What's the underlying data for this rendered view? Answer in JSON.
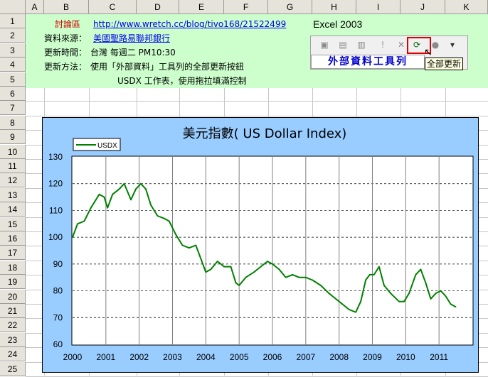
{
  "columns": [
    "A",
    "B",
    "C",
    "D",
    "E",
    "F",
    "G",
    "H",
    "I",
    "J",
    "K"
  ],
  "rows": [
    "1",
    "2",
    "3",
    "4",
    "5",
    "6",
    "7",
    "8",
    "9",
    "10",
    "11",
    "12",
    "13",
    "14",
    "15",
    "16",
    "17",
    "18",
    "19",
    "20",
    "21",
    "22",
    "23",
    "24",
    "25"
  ],
  "sheet": {
    "discuss_label": "討論區",
    "discuss_url": "http://www.wretch.cc/blog/tivo168/21522499",
    "excel_version": "Excel 2003",
    "source_label": "資料來源：",
    "source_value": "美國聖路易聯邦銀行",
    "update_time_label": "更新時間：",
    "update_time_value": "台灣 每週二 PM10:30",
    "update_method_label": "更新方法：",
    "update_method_value": "使用「外部資料」工具列的全部更新按鈕",
    "update_method_note": "USDX 工作表，使用拖拉填滿控制"
  },
  "toolbar": {
    "caption": "外部資料工具列",
    "tooltip": "全部更新",
    "buttons": [
      "external-data-icon",
      "edit-query-icon",
      "data-range-properties-icon",
      "query-parameters-icon",
      "refresh-icon",
      "cancel-refresh-icon",
      "refresh-all-icon",
      "refresh-status-icon",
      "options-dropdown-icon"
    ]
  },
  "chart_data": {
    "type": "line",
    "title": "美元指數( US Dollar Index)",
    "xlabel": "",
    "ylabel": "",
    "x_ticks": [
      "2000",
      "2001",
      "2002",
      "2003",
      "2004",
      "2005",
      "2006",
      "2007",
      "2008",
      "2009",
      "2010",
      "2011"
    ],
    "y_ticks": [
      "130",
      "120",
      "110",
      "100",
      "90",
      "80",
      "70",
      "60"
    ],
    "ylim": [
      60,
      130
    ],
    "xlim": [
      2000.0,
      2012.0
    ],
    "grid": "horizontal dashed, vertical solid",
    "legend_position": "top-left",
    "series": [
      {
        "name": "USDX",
        "color": "#008000",
        "points": [
          [
            2000.0,
            100
          ],
          [
            2000.15,
            105
          ],
          [
            2000.35,
            106
          ],
          [
            2000.55,
            111
          ],
          [
            2000.8,
            116
          ],
          [
            2000.95,
            115
          ],
          [
            2001.05,
            111
          ],
          [
            2001.2,
            116
          ],
          [
            2001.4,
            118
          ],
          [
            2001.55,
            120
          ],
          [
            2001.75,
            114
          ],
          [
            2001.9,
            118
          ],
          [
            2002.05,
            120
          ],
          [
            2002.2,
            118
          ],
          [
            2002.35,
            112
          ],
          [
            2002.55,
            108
          ],
          [
            2002.75,
            107
          ],
          [
            2002.9,
            106
          ],
          [
            2003.1,
            101
          ],
          [
            2003.3,
            97
          ],
          [
            2003.5,
            96
          ],
          [
            2003.7,
            97
          ],
          [
            2003.85,
            92
          ],
          [
            2004.0,
            87
          ],
          [
            2004.15,
            88
          ],
          [
            2004.35,
            91
          ],
          [
            2004.55,
            89
          ],
          [
            2004.75,
            89
          ],
          [
            2004.9,
            83
          ],
          [
            2005.0,
            82
          ],
          [
            2005.2,
            85
          ],
          [
            2005.45,
            87
          ],
          [
            2005.65,
            89
          ],
          [
            2005.85,
            91
          ],
          [
            2006.0,
            90
          ],
          [
            2006.2,
            88
          ],
          [
            2006.4,
            85
          ],
          [
            2006.6,
            86
          ],
          [
            2006.8,
            85
          ],
          [
            2007.0,
            85
          ],
          [
            2007.2,
            84
          ],
          [
            2007.45,
            82
          ],
          [
            2007.7,
            79
          ],
          [
            2007.9,
            77
          ],
          [
            2008.1,
            75
          ],
          [
            2008.3,
            73
          ],
          [
            2008.5,
            72
          ],
          [
            2008.65,
            76
          ],
          [
            2008.8,
            84
          ],
          [
            2008.92,
            86
          ],
          [
            2009.05,
            86
          ],
          [
            2009.2,
            89
          ],
          [
            2009.35,
            82
          ],
          [
            2009.55,
            79
          ],
          [
            2009.8,
            76
          ],
          [
            2009.95,
            76
          ],
          [
            2010.1,
            79
          ],
          [
            2010.3,
            86
          ],
          [
            2010.45,
            88
          ],
          [
            2010.6,
            83
          ],
          [
            2010.75,
            77
          ],
          [
            2010.9,
            79
          ],
          [
            2011.05,
            80
          ],
          [
            2011.2,
            78
          ],
          [
            2011.35,
            75
          ],
          [
            2011.5,
            74
          ]
        ]
      }
    ]
  }
}
